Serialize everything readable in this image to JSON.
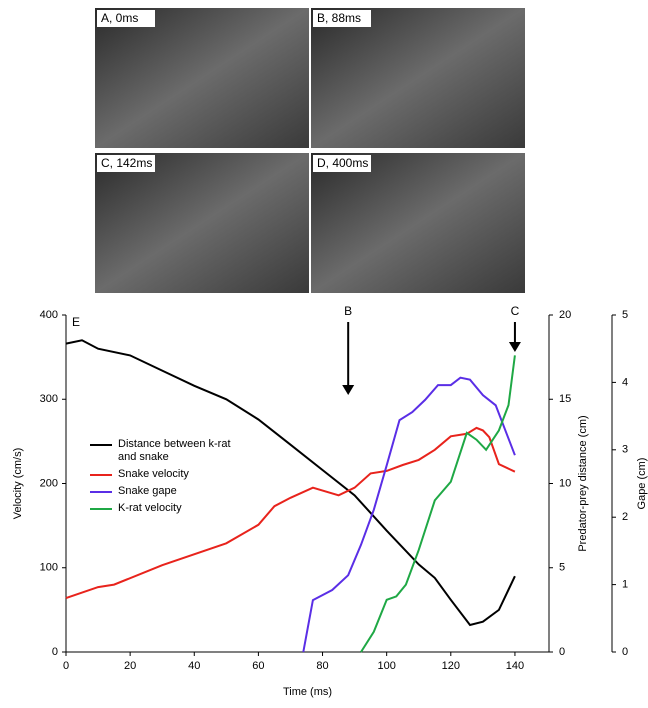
{
  "photos": [
    {
      "label": "A, 0ms"
    },
    {
      "label": "B, 88ms"
    },
    {
      "label": "C, 142ms"
    },
    {
      "label": "D, 400ms"
    }
  ],
  "chart_data": {
    "type": "line",
    "panel_label": "E",
    "xlabel": "Time (ms)",
    "ylabel": "Velocity (cm/s)",
    "y2label": "Predator-prey distance (cm)",
    "y3label": "Gape (cm)",
    "xlim": [
      0,
      150
    ],
    "xticks": [
      0,
      20,
      40,
      60,
      80,
      100,
      120,
      140
    ],
    "ylim": [
      0,
      400
    ],
    "yticks": [
      0,
      100,
      200,
      300,
      400
    ],
    "y2lim": [
      0,
      20
    ],
    "y2ticks": [
      0,
      5,
      10,
      15,
      20
    ],
    "y3lim": [
      0,
      5
    ],
    "y3ticks": [
      0,
      1,
      2,
      3,
      4,
      5
    ],
    "annotations": [
      {
        "text": "B",
        "x": 88
      },
      {
        "text": "C",
        "x": 140
      }
    ],
    "series": [
      {
        "name": "Distance between k-rat and snake",
        "color": "#000000",
        "axis": "y2",
        "x": [
          0,
          5,
          10,
          20,
          30,
          40,
          50,
          60,
          70,
          80,
          90,
          100,
          110,
          115,
          120,
          126,
          130,
          135,
          140
        ],
        "values": [
          18.3,
          18.5,
          18.0,
          17.6,
          16.7,
          15.8,
          15.0,
          13.8,
          12.3,
          10.8,
          9.3,
          7.2,
          5.2,
          4.4,
          3.1,
          1.6,
          1.8,
          2.5,
          4.5
        ]
      },
      {
        "name": "Snake velocity",
        "color": "#e8231c",
        "axis": "y",
        "x": [
          0,
          10,
          15,
          30,
          50,
          60,
          65,
          70,
          77,
          85,
          90,
          95,
          100,
          105,
          110,
          115,
          120,
          125,
          128,
          130,
          132,
          135,
          140
        ],
        "values": [
          64,
          77,
          80,
          103,
          129,
          151,
          173,
          183,
          195,
          186,
          195,
          212,
          215,
          222,
          228,
          240,
          256,
          259,
          266,
          263,
          255,
          223,
          214
        ]
      },
      {
        "name": "Snake gape",
        "color": "#5a2ee6",
        "axis": "y3",
        "x": [
          74,
          77,
          83,
          88,
          92,
          96,
          100,
          104,
          108,
          112,
          116,
          120,
          123,
          126,
          130,
          134,
          140
        ],
        "values": [
          0,
          0.77,
          0.92,
          1.14,
          1.59,
          2.11,
          2.77,
          3.44,
          3.56,
          3.74,
          3.96,
          3.96,
          4.07,
          4.04,
          3.81,
          3.66,
          2.92
        ]
      },
      {
        "name": "K-rat velocity",
        "color": "#1fa845",
        "axis": "y",
        "x": [
          92,
          96,
          100,
          103,
          106,
          110,
          115,
          120,
          125,
          128,
          131,
          135,
          138,
          140
        ],
        "values": [
          0,
          24,
          62,
          66,
          80,
          121,
          180,
          202,
          260,
          252,
          240,
          263,
          293,
          352
        ]
      }
    ]
  }
}
